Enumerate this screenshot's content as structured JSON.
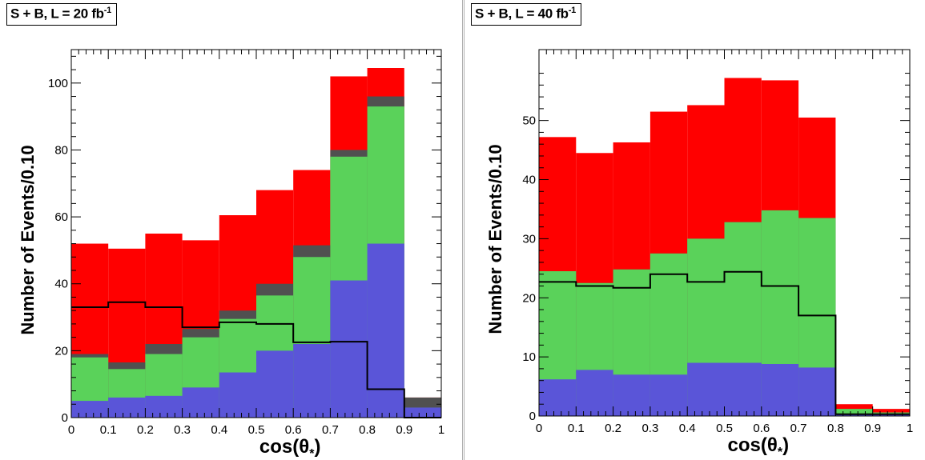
{
  "colors": {
    "signal": "#ff0000",
    "dark_bkg": "#505050",
    "green_bkg": "#5ad25a",
    "blue_bkg": "#5a55d8",
    "line": "#000000"
  },
  "chart_data": [
    {
      "type": "bar",
      "label_main": "S + B, L = 20 fb",
      "label_sup": "-1",
      "xlabel_main": "cos(θ",
      "xlabel_sub": "*",
      "xlabel_close": ")",
      "ylabel": "Number of Events/0.10",
      "xlim": [
        0,
        1
      ],
      "ylim": [
        0,
        110
      ],
      "x_ticks": [
        "0",
        "0.1",
        "0.2",
        "0.3",
        "0.4",
        "0.5",
        "0.6",
        "0.7",
        "0.8",
        "0.9",
        "1"
      ],
      "y_ticks": [
        0,
        20,
        40,
        60,
        80,
        100
      ],
      "bin_edges": [
        0,
        0.1,
        0.2,
        0.3,
        0.4,
        0.5,
        0.6,
        0.7,
        0.8,
        0.9,
        1.0
      ],
      "stack_tops": {
        "blue": [
          5,
          6,
          6.5,
          9,
          13.5,
          20,
          22,
          41,
          52,
          3
        ],
        "green": [
          18,
          14.5,
          19,
          24,
          29.5,
          36.5,
          48,
          78,
          93,
          3
        ],
        "dark": [
          19,
          16.5,
          22,
          26.5,
          32,
          40,
          51.5,
          80,
          96,
          6
        ],
        "red": [
          52,
          50.5,
          55,
          53,
          60.5,
          68,
          74,
          102,
          104.5,
          6
        ]
      },
      "line_values": [
        33,
        34.5,
        33,
        27,
        28.5,
        28,
        22.5,
        22.7,
        8.5,
        0
      ]
    },
    {
      "type": "bar",
      "label_main": "S + B, L = 40 fb",
      "label_sup": "-1",
      "xlabel_main": "cos(θ",
      "xlabel_sub": "*",
      "xlabel_close": ")",
      "ylabel": "Number of Events/0.10",
      "xlim": [
        0,
        1
      ],
      "ylim": [
        0,
        62
      ],
      "x_ticks": [
        "0",
        "0.1",
        "0.2",
        "0.3",
        "0.4",
        "0.5",
        "0.6",
        "0.7",
        "0.8",
        "0.9",
        "1"
      ],
      "y_ticks": [
        0,
        10,
        20,
        30,
        40,
        50
      ],
      "bin_edges": [
        0,
        0.1,
        0.2,
        0.3,
        0.4,
        0.5,
        0.6,
        0.7,
        0.8,
        0.9,
        1.0
      ],
      "stack_tops": {
        "blue": [
          6.2,
          7.8,
          7,
          7,
          9,
          9,
          8.8,
          8.2,
          0.3,
          0.2
        ],
        "green": [
          24.5,
          22.5,
          24.8,
          27.5,
          30,
          32.8,
          34.8,
          33.5,
          1.2,
          0.6
        ],
        "dark": [
          24.5,
          22.5,
          24.8,
          27.5,
          30,
          32.8,
          34.8,
          33.5,
          1.2,
          0.6
        ],
        "red": [
          47.2,
          44.5,
          46.3,
          51.5,
          52.6,
          57.2,
          56.8,
          50.5,
          2,
          1.2
        ]
      },
      "line_values": [
        22.7,
        22,
        21.7,
        24,
        22.7,
        24.4,
        22,
        17,
        0.3,
        0.3
      ]
    }
  ]
}
